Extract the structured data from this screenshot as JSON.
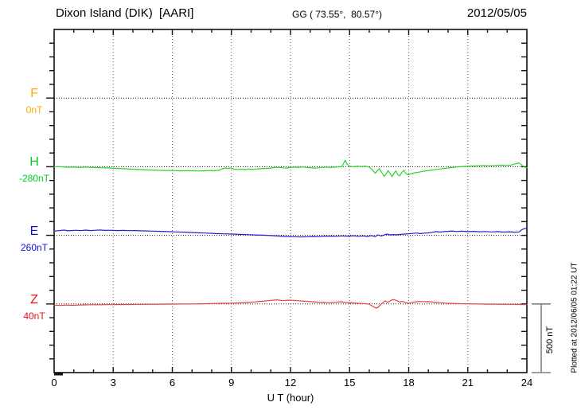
{
  "header": {
    "station_title": "Dixon Island (DIK)  [AARI]",
    "coordinates": "GG ( 73.55°,  80.57°)",
    "date": "2012/05/05"
  },
  "plot": {
    "x_axis_label": "U T (hour)",
    "x_tick_labels": [
      "0",
      "3",
      "6",
      "9",
      "12",
      "15",
      "18",
      "21",
      "24"
    ],
    "scale_bar_label": "500 nT",
    "plotted_at_note": "Plotted at 2012/06/05 01:22 UT"
  },
  "chart_data": {
    "type": "line",
    "title": "Magnetogram, Dixon Island (DIK) [AARI], 2012/05/05",
    "xlabel": "U T (hour)",
    "x_range": [
      0,
      24
    ],
    "x_major_tick_step": 3,
    "x_minor_tick_step": 1,
    "y_divisions": 25,
    "nT_per_division": 100,
    "scale_bar_nT": 500,
    "grid": "dotted vertical lines every 3 hours; dotted horizontal baseline per channel",
    "legend_position": "left margin channel labels",
    "frame_color": "#111111",
    "scale_bar_color": "#808080",
    "series": [
      {
        "id": "F",
        "label": "F",
        "baseline_value": "0nT",
        "label_color": "#ffaa00",
        "trace_color": "#ffaa00",
        "baseline_div": 5,
        "no_data": true,
        "points": []
      },
      {
        "id": "H",
        "label": "H",
        "baseline_value": "-280nT",
        "label_color": "#00cc22",
        "trace_color": "#2ad42a",
        "baseline_div": 10,
        "no_data": false,
        "points": [
          [
            0,
            -2
          ],
          [
            0.2,
            1
          ],
          [
            0.4,
            -2
          ],
          [
            0.7,
            -4
          ],
          [
            1,
            -3
          ],
          [
            1.3,
            -5
          ],
          [
            1.6,
            -3
          ],
          [
            2,
            -6
          ],
          [
            2.4,
            -8
          ],
          [
            2.8,
            -9
          ],
          [
            3.2,
            -12
          ],
          [
            3.6,
            -15
          ],
          [
            4,
            -18
          ],
          [
            4.4,
            -21
          ],
          [
            4.8,
            -24
          ],
          [
            5.2,
            -26
          ],
          [
            5.6,
            -27
          ],
          [
            6,
            -28
          ],
          [
            6.4,
            -30
          ],
          [
            6.8,
            -29
          ],
          [
            7.2,
            -31
          ],
          [
            7.6,
            -30
          ],
          [
            7.9,
            -28
          ],
          [
            8.1,
            -30
          ],
          [
            8.35,
            -26
          ],
          [
            8.55,
            -15
          ],
          [
            8.7,
            -8
          ],
          [
            8.8,
            -14
          ],
          [
            8.95,
            -9
          ],
          [
            9.1,
            -16
          ],
          [
            9.3,
            -21
          ],
          [
            9.5,
            -18
          ],
          [
            9.7,
            -21
          ],
          [
            9.9,
            -17
          ],
          [
            10.1,
            -19
          ],
          [
            10.4,
            -15
          ],
          [
            10.7,
            -13
          ],
          [
            11,
            -10
          ],
          [
            11.2,
            -6
          ],
          [
            11.4,
            -4
          ],
          [
            11.6,
            -8
          ],
          [
            11.8,
            -10
          ],
          [
            12,
            -6
          ],
          [
            12.2,
            -3
          ],
          [
            12.4,
            -6
          ],
          [
            12.6,
            -2
          ],
          [
            12.8,
            -4
          ],
          [
            13,
            -7
          ],
          [
            13.2,
            -10
          ],
          [
            13.4,
            -8
          ],
          [
            13.6,
            -5
          ],
          [
            13.8,
            -3
          ],
          [
            14,
            -5
          ],
          [
            14.2,
            -4
          ],
          [
            14.4,
            -2
          ],
          [
            14.6,
            0
          ],
          [
            14.7,
            25
          ],
          [
            14.78,
            48
          ],
          [
            14.86,
            20
          ],
          [
            15,
            3
          ],
          [
            15.2,
            0
          ],
          [
            15.4,
            4
          ],
          [
            15.6,
            2
          ],
          [
            15.8,
            4
          ],
          [
            16,
            -3
          ],
          [
            16.15,
            -22
          ],
          [
            16.3,
            -48
          ],
          [
            16.4,
            -32
          ],
          [
            16.5,
            -14
          ],
          [
            16.62,
            -38
          ],
          [
            16.75,
            -70
          ],
          [
            16.85,
            -55
          ],
          [
            16.95,
            -28
          ],
          [
            17.05,
            -48
          ],
          [
            17.15,
            -72
          ],
          [
            17.25,
            -50
          ],
          [
            17.35,
            -30
          ],
          [
            17.45,
            -58
          ],
          [
            17.55,
            -66
          ],
          [
            17.65,
            -42
          ],
          [
            17.75,
            -26
          ],
          [
            17.85,
            -48
          ],
          [
            17.95,
            -60
          ],
          [
            18.1,
            -52
          ],
          [
            18.3,
            -44
          ],
          [
            18.5,
            -40
          ],
          [
            18.7,
            -34
          ],
          [
            18.9,
            -30
          ],
          [
            19.1,
            -26
          ],
          [
            19.4,
            -20
          ],
          [
            19.7,
            -14
          ],
          [
            20,
            -9
          ],
          [
            20.3,
            -4
          ],
          [
            20.6,
            0
          ],
          [
            20.9,
            3
          ],
          [
            21.2,
            5
          ],
          [
            21.5,
            7
          ],
          [
            21.8,
            9
          ],
          [
            22.1,
            7
          ],
          [
            22.4,
            9
          ],
          [
            22.7,
            11
          ],
          [
            23,
            9
          ],
          [
            23.2,
            12
          ],
          [
            23.45,
            22
          ],
          [
            23.6,
            28
          ],
          [
            23.75,
            10
          ],
          [
            23.9,
            -4
          ],
          [
            24,
            -7
          ]
        ]
      },
      {
        "id": "E",
        "label": "E",
        "baseline_value": "260nT",
        "label_color": "#1111dd",
        "trace_color": "#2222cc",
        "baseline_div": 15,
        "no_data": false,
        "points": [
          [
            0,
            30
          ],
          [
            0.25,
            34
          ],
          [
            0.5,
            38
          ],
          [
            0.7,
            33
          ],
          [
            0.9,
            35
          ],
          [
            1.1,
            37
          ],
          [
            1.35,
            34
          ],
          [
            1.6,
            38
          ],
          [
            1.85,
            35
          ],
          [
            2.1,
            37
          ],
          [
            2.35,
            39
          ],
          [
            2.6,
            36
          ],
          [
            2.9,
            37
          ],
          [
            3.2,
            35
          ],
          [
            3.5,
            36
          ],
          [
            3.8,
            34
          ],
          [
            4.1,
            35
          ],
          [
            4.4,
            33
          ],
          [
            4.7,
            32
          ],
          [
            5,
            31
          ],
          [
            5.4,
            29
          ],
          [
            5.8,
            27
          ],
          [
            6.2,
            25
          ],
          [
            6.6,
            23
          ],
          [
            7,
            21
          ],
          [
            7.4,
            18
          ],
          [
            7.8,
            16
          ],
          [
            8.2,
            13
          ],
          [
            8.6,
            11
          ],
          [
            9,
            9
          ],
          [
            9.4,
            7
          ],
          [
            9.8,
            5
          ],
          [
            10.2,
            3
          ],
          [
            10.6,
            1
          ],
          [
            11,
            -2
          ],
          [
            11.4,
            -5
          ],
          [
            11.8,
            -8
          ],
          [
            12.2,
            -10
          ],
          [
            12.5,
            -12
          ],
          [
            12.8,
            -10
          ],
          [
            13.1,
            -8
          ],
          [
            13.4,
            -9
          ],
          [
            13.7,
            -6
          ],
          [
            14,
            -5
          ],
          [
            14.3,
            -7
          ],
          [
            14.6,
            -4
          ],
          [
            14.9,
            -6
          ],
          [
            15.2,
            -3
          ],
          [
            15.45,
            -7
          ],
          [
            15.7,
            -4
          ],
          [
            15.9,
            -8
          ],
          [
            16.1,
            -2
          ],
          [
            16.3,
            -9
          ],
          [
            16.45,
            4
          ],
          [
            16.6,
            -5
          ],
          [
            16.75,
            3
          ],
          [
            16.9,
            9
          ],
          [
            17.05,
            3
          ],
          [
            17.2,
            6
          ],
          [
            17.4,
            4
          ],
          [
            17.6,
            7
          ],
          [
            17.8,
            9
          ],
          [
            18,
            11
          ],
          [
            18.2,
            14
          ],
          [
            18.4,
            17
          ],
          [
            18.6,
            13
          ],
          [
            18.8,
            16
          ],
          [
            19,
            18
          ],
          [
            19.2,
            22
          ],
          [
            19.4,
            27
          ],
          [
            19.6,
            24
          ],
          [
            19.8,
            27
          ],
          [
            20,
            29
          ],
          [
            20.2,
            32
          ],
          [
            20.4,
            28
          ],
          [
            20.7,
            30
          ],
          [
            21,
            27
          ],
          [
            21.3,
            29
          ],
          [
            21.6,
            26
          ],
          [
            21.9,
            28
          ],
          [
            22.2,
            25
          ],
          [
            22.5,
            27
          ],
          [
            22.8,
            24
          ],
          [
            23.1,
            26
          ],
          [
            23.4,
            23
          ],
          [
            23.6,
            25
          ],
          [
            23.75,
            42
          ],
          [
            23.9,
            50
          ],
          [
            24,
            48
          ]
        ]
      },
      {
        "id": "Z",
        "label": "Z",
        "baseline_value": "40nT",
        "label_color": "#ee1111",
        "trace_color": "#e84040",
        "baseline_div": 20,
        "no_data": false,
        "points": [
          [
            0,
            -8
          ],
          [
            0.3,
            -11
          ],
          [
            0.6,
            -8
          ],
          [
            0.9,
            -10
          ],
          [
            1.2,
            -8
          ],
          [
            1.5,
            -7
          ],
          [
            1.8,
            -6
          ],
          [
            2.2,
            -6
          ],
          [
            2.6,
            -5
          ],
          [
            3,
            -5
          ],
          [
            3.4,
            -4
          ],
          [
            3.8,
            -4
          ],
          [
            4.2,
            -3
          ],
          [
            4.6,
            -3
          ],
          [
            5,
            -2
          ],
          [
            5.4,
            -2
          ],
          [
            5.8,
            -1
          ],
          [
            6.2,
            -1
          ],
          [
            6.6,
            0
          ],
          [
            7,
            0
          ],
          [
            7.4,
            1
          ],
          [
            7.8,
            2
          ],
          [
            8.2,
            4
          ],
          [
            8.6,
            5
          ],
          [
            9,
            6
          ],
          [
            9.4,
            8
          ],
          [
            9.8,
            11
          ],
          [
            10.2,
            15
          ],
          [
            10.6,
            20
          ],
          [
            11,
            26
          ],
          [
            11.3,
            30
          ],
          [
            11.6,
            24
          ],
          [
            11.9,
            28
          ],
          [
            12.2,
            26
          ],
          [
            12.5,
            22
          ],
          [
            12.8,
            19
          ],
          [
            13.1,
            16
          ],
          [
            13.4,
            13
          ],
          [
            13.7,
            11
          ],
          [
            14,
            9
          ],
          [
            14.3,
            12
          ],
          [
            14.55,
            16
          ],
          [
            14.8,
            11
          ],
          [
            15.1,
            8
          ],
          [
            15.4,
            5
          ],
          [
            15.7,
            3
          ],
          [
            15.95,
            0
          ],
          [
            16.1,
            -10
          ],
          [
            16.25,
            -24
          ],
          [
            16.38,
            -30
          ],
          [
            16.5,
            -16
          ],
          [
            16.62,
            0
          ],
          [
            16.72,
            14
          ],
          [
            16.82,
            22
          ],
          [
            16.92,
            12
          ],
          [
            17.02,
            18
          ],
          [
            17.12,
            28
          ],
          [
            17.25,
            32
          ],
          [
            17.4,
            24
          ],
          [
            17.55,
            14
          ],
          [
            17.7,
            18
          ],
          [
            17.85,
            10
          ],
          [
            18,
            6
          ],
          [
            18.2,
            12
          ],
          [
            18.4,
            16
          ],
          [
            18.6,
            18
          ],
          [
            18.8,
            16
          ],
          [
            19,
            17
          ],
          [
            19.3,
            13
          ],
          [
            19.6,
            9
          ],
          [
            19.9,
            6
          ],
          [
            20.2,
            4
          ],
          [
            20.6,
            2
          ],
          [
            21,
            1
          ],
          [
            21.4,
            0
          ],
          [
            21.8,
            -1
          ],
          [
            22.2,
            -2
          ],
          [
            22.6,
            -2
          ],
          [
            23,
            -3
          ],
          [
            23.4,
            -3
          ],
          [
            23.7,
            -4
          ],
          [
            24,
            -5
          ]
        ]
      }
    ]
  }
}
